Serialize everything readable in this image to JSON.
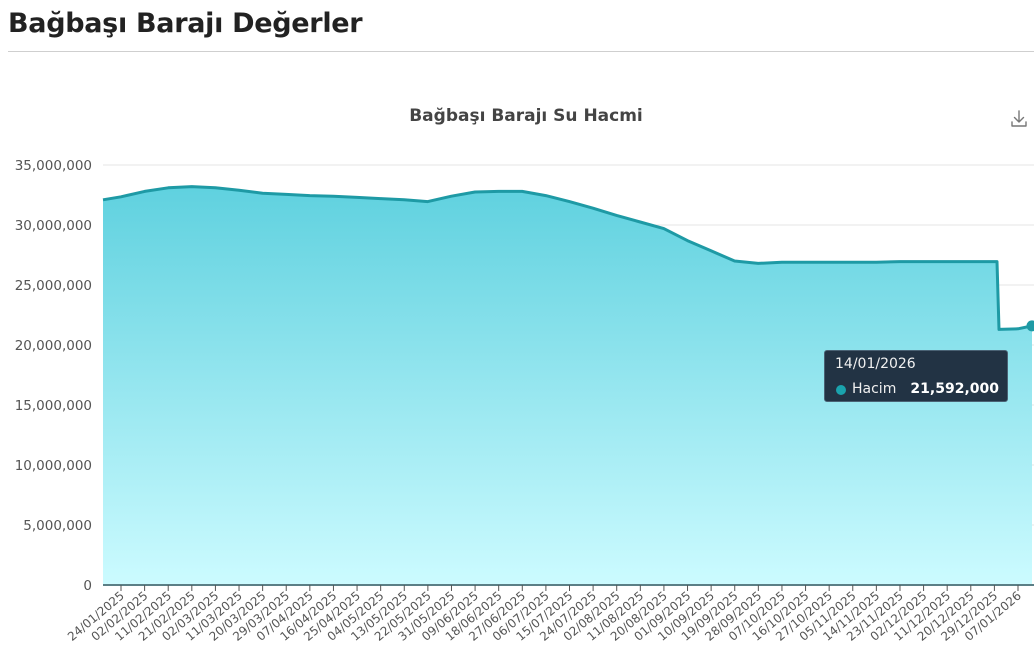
{
  "page": {
    "title": "Bağbaşı Barajı Değerler"
  },
  "toolbar": {
    "download_icon": "download-icon"
  },
  "colors": {
    "line": "#1e9aa5",
    "fill_top": "#5fd1df",
    "fill_bottom": "#ccfbff",
    "grid": "#e6e6e6",
    "axis": "#5b7f86",
    "tooltip_bg": "#223344"
  },
  "tooltip": {
    "date": "14/01/2026",
    "series": "Hacim",
    "value": "21,592,000"
  },
  "chart_data": {
    "type": "area",
    "title": "Bağbaşı Barajı Su Hacmi",
    "xlabel": "",
    "ylabel": "",
    "ylim": [
      0,
      35000000
    ],
    "grid": true,
    "legend": "none",
    "y_ticks": [
      "0",
      "5,000,000",
      "10,000,000",
      "15,000,000",
      "20,000,000",
      "25,000,000",
      "30,000,000",
      "35,000,000"
    ],
    "x_tick_labels": [
      "24/01/2025",
      "02/02/2025",
      "11/02/2025",
      "21/02/2025",
      "02/03/2025",
      "11/03/2025",
      "20/03/2025",
      "29/03/2025",
      "07/04/2025",
      "16/04/2025",
      "25/04/2025",
      "04/05/2025",
      "13/05/2025",
      "22/05/2025",
      "31/05/2025",
      "09/06/2025",
      "18/06/2025",
      "27/06/2025",
      "06/07/2025",
      "15/07/2025",
      "24/07/2025",
      "02/08/2025",
      "11/08/2025",
      "20/08/2025",
      "01/09/2025",
      "10/09/2025",
      "19/09/2025",
      "28/09/2025",
      "07/10/2025",
      "16/10/2025",
      "27/10/2025",
      "05/11/2025",
      "14/11/2025",
      "23/11/2025",
      "02/12/2025",
      "11/12/2025",
      "20/12/2025",
      "29/12/2025",
      "07/01/2026"
    ],
    "series": [
      {
        "name": "Hacim",
        "x": [
          "~15/01/2025",
          "24/01/2025",
          "02/02/2025",
          "11/02/2025",
          "21/02/2025",
          "02/03/2025",
          "11/03/2025",
          "20/03/2025",
          "29/03/2025",
          "07/04/2025",
          "16/04/2025",
          "25/04/2025",
          "04/05/2025",
          "13/05/2025",
          "22/05/2025",
          "31/05/2025",
          "09/06/2025",
          "18/06/2025",
          "27/06/2025",
          "06/07/2025",
          "15/07/2025",
          "24/07/2025",
          "02/08/2025",
          "11/08/2025",
          "20/08/2025",
          "01/09/2025",
          "10/09/2025",
          "19/09/2025",
          "28/09/2025",
          "07/10/2025",
          "16/10/2025",
          "27/10/2025",
          "05/11/2025",
          "14/11/2025",
          "23/11/2025",
          "02/12/2025",
          "11/12/2025",
          "20/12/2025",
          "29/12/2025",
          "31/12/2025",
          "07/01/2026",
          "14/01/2026"
        ],
        "values": [
          32100000,
          32350000,
          32800000,
          33100000,
          33200000,
          33100000,
          32900000,
          32650000,
          32550000,
          32450000,
          32400000,
          32300000,
          32200000,
          32100000,
          31950000,
          32400000,
          32750000,
          32800000,
          32800000,
          32450000,
          31950000,
          31400000,
          30800000,
          30250000,
          29700000,
          28700000,
          27850000,
          27000000,
          26800000,
          26900000,
          26900000,
          26900000,
          26900000,
          26900000,
          26950000,
          26950000,
          26950000,
          26950000,
          26950000,
          21300000,
          21350000,
          21592000
        ]
      }
    ]
  }
}
